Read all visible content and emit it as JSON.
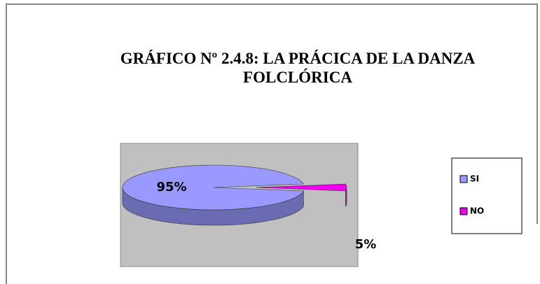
{
  "chart_data": {
    "type": "pie3d",
    "title": "GRÁFICO Nº 2.4.8: LA PRÁCICA DE LA DANZA FOLCLÓRICA",
    "categories": [
      "SI",
      "NO"
    ],
    "values": [
      95,
      5
    ],
    "value_labels": [
      "95%",
      "5%"
    ],
    "colors": [
      "#9999ff",
      "#ee00ee"
    ],
    "legend": "right"
  }
}
